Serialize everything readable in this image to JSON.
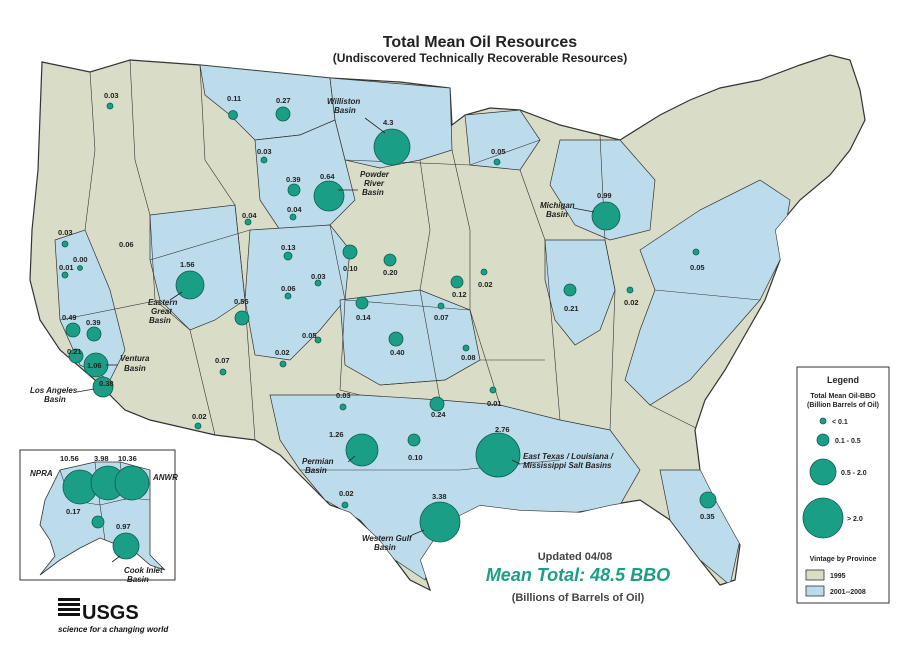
{
  "title": "Total Mean Oil Resources",
  "subtitle": "(Undiscovered Technically Recoverable Resources)",
  "updated": "Updated 04/08",
  "mean_total": "Mean Total: 48.5 BBO",
  "units_note": "(Billions of Barrels of Oil)",
  "colors": {
    "vintage_1995": "#d9dcc6",
    "vintage_2000_2008": "#bcdcec",
    "circle": "#1a9e85",
    "border": "#333333"
  },
  "legend": {
    "title": "Legend",
    "size_title_1": "Total Mean Oil-BBO",
    "size_title_2": "(Billion Barrels of Oil)",
    "size_classes": [
      "< 0.1",
      "0.1 - 0.5",
      "0.5 - 2.0",
      "> 2.0"
    ],
    "vintage_title": "Vintage by Province",
    "vintage_classes": [
      "1995",
      "2001--2008"
    ]
  },
  "basin_names": {
    "williston": "Williston",
    "williston2": "Basin",
    "powder1": "Powder",
    "powder2": "River",
    "powder3": "Basin",
    "michigan1": "Michigan",
    "michigan2": "Basin",
    "eastern1": "Eastern",
    "eastern2": "Great",
    "eastern3": "Basin",
    "ventura1": "Ventura",
    "ventura2": "Basin",
    "la1": "Los Angeles",
    "la2": "Basin",
    "permian1": "Permian",
    "permian2": "Basin",
    "etx1": "East Texas / Louisiana /",
    "etx2": "Mississippi Salt Basins",
    "wgulf1": "Western Gulf",
    "wgulf2": "Basin",
    "npra": "NPRA",
    "anwr": "ANWR",
    "cook1": "Cook Inlet",
    "cook2": "Basin"
  },
  "values": {
    "v1": "0.03",
    "v2": "0.11",
    "v3": "0.27",
    "v4": "4.3",
    "v5": "0.05",
    "v6": "0.03",
    "v7": "0.39",
    "v8": "0.64",
    "v9": "0.04",
    "v10": "0.99",
    "v11": "0.03",
    "v12": "0.06",
    "v13": "0.04",
    "v14": "0.13",
    "v15": "0.01",
    "v16": "0.00",
    "v17": "1.56",
    "v18": "0.10",
    "v19": "0.20",
    "v20": "0.03",
    "v21": "0.06",
    "v22": "0.12",
    "v23": "0.02",
    "v24": "0.05",
    "v25": "0.21",
    "v26": "0.02",
    "v27": "0.49",
    "v28": "0.55",
    "v29": "0.39",
    "v30": "0.14",
    "v31": "0.07",
    "v32": "0.05",
    "v33": "0.40",
    "v34": "0.21",
    "v35": "0.02",
    "v36": "1.06",
    "v37": "0.08",
    "v38": "0.07",
    "v39": "0.38",
    "v40": "0.03",
    "v41": "0.01",
    "v42": "0.24",
    "v43": "0.02",
    "v44": "1.26",
    "v45": "0.10",
    "v46": "2.76",
    "v47": "0.02",
    "v48": "3.38",
    "v49": "0.35",
    "v50": "10.56",
    "v51": "3.98",
    "v52": "10.36",
    "v53": "0.17",
    "v54": "0.97"
  },
  "footer": {
    "logo": "USGS",
    "tagline": "science for a changing world"
  }
}
